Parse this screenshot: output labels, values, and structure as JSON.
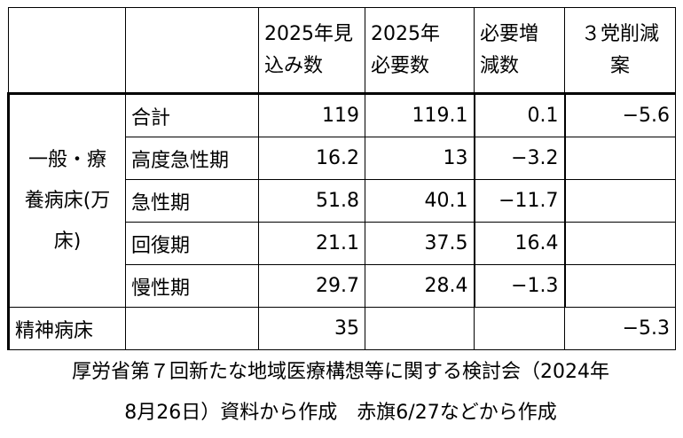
{
  "table": {
    "header": [
      [],
      [],
      [
        "2025年見",
        "込み数"
      ],
      [
        "2025年",
        "必要数"
      ],
      [
        "必要増",
        "減数"
      ],
      [
        "３党削減",
        "案"
      ]
    ],
    "group": [
      "一般・療",
      "養病床(万",
      "床)"
    ],
    "rows": [
      [
        "合計",
        "119",
        "119.1",
        "0.1",
        "−5.6"
      ],
      [
        "高度急性期",
        "16.2",
        "13",
        "−3.2",
        ""
      ],
      [
        "急性期",
        "51.8",
        "40.1",
        "−11.7",
        ""
      ],
      [
        "回復期",
        "21.1",
        "37.5",
        "16.4",
        ""
      ],
      [
        "慢性期",
        "29.7",
        "28.4",
        "−1.3",
        ""
      ]
    ],
    "last_row": [
      "精神病床",
      "",
      "35",
      "",
      "",
      "−5.3"
    ]
  },
  "note": [
    "厚労省第７回新たな地域医療構想等に関する検討会（2024年",
    "8月26日）資料から作成　赤旗6/27などから作成"
  ]
}
